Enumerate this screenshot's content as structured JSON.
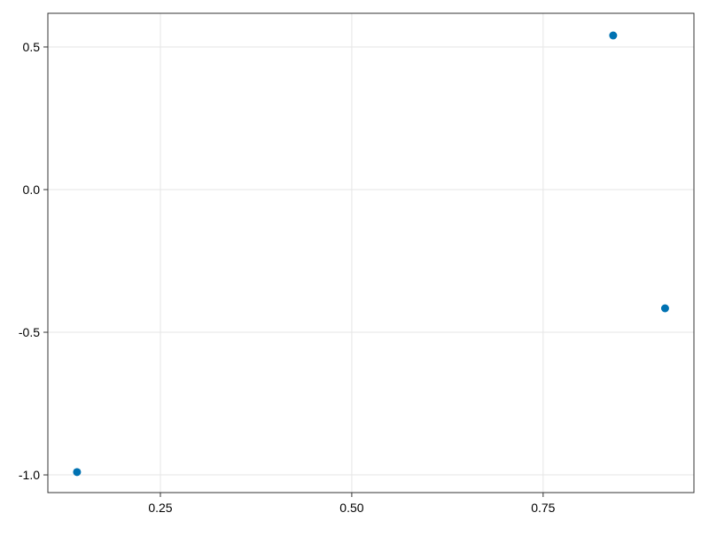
{
  "chart_data": {
    "type": "scatter",
    "title": "",
    "xlabel": "",
    "ylabel": "",
    "x": [
      0.8415,
      0.9093,
      0.1411
    ],
    "y": [
      0.5403,
      -0.4161,
      -0.99
    ],
    "xlim": [
      0.103,
      0.947
    ],
    "ylim": [
      -1.062,
      0.618
    ],
    "xticks": [
      0.25,
      0.5,
      0.75
    ],
    "xtick_labels": [
      "0.25",
      "0.50",
      "0.75"
    ],
    "yticks": [
      0.5,
      0.0,
      -0.5,
      -1.0
    ],
    "ytick_labels": [
      "0.5",
      "0.0",
      "-0.5",
      "-1.0"
    ],
    "grid": true,
    "marker_color": "#0072b2",
    "grid_color": "#e5e5e5",
    "frame_color": "#333333"
  }
}
